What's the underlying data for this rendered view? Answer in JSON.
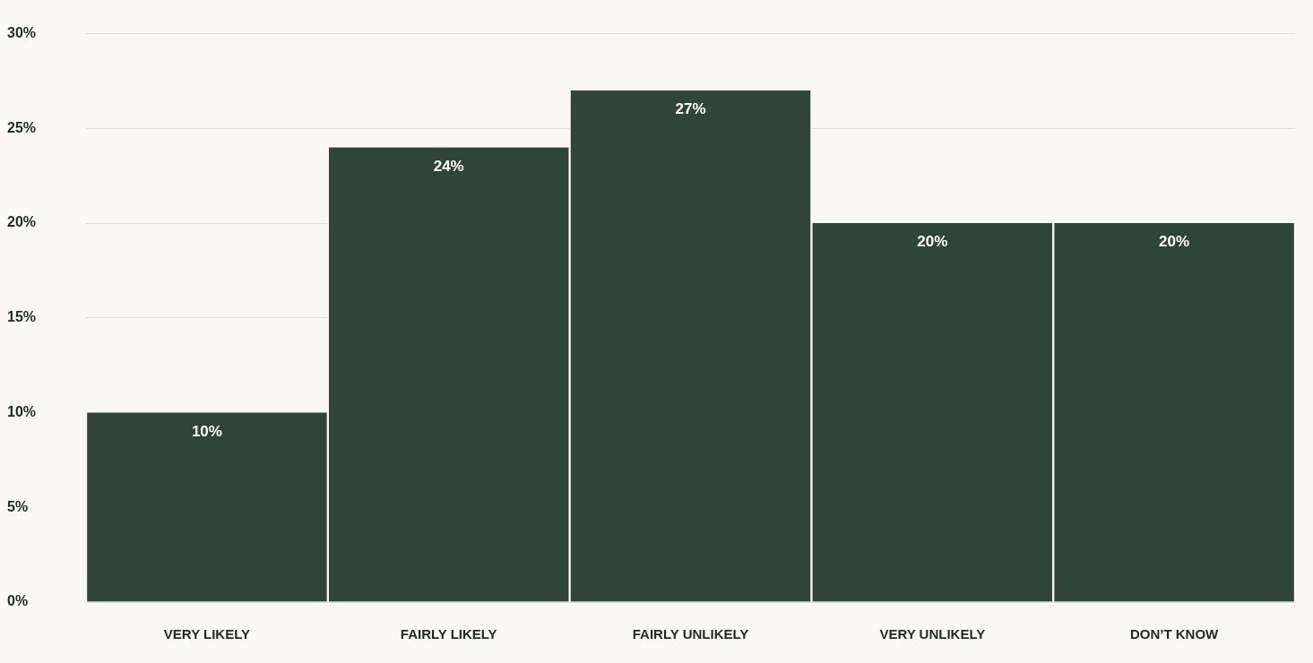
{
  "chart_data": {
    "type": "bar",
    "categories": [
      "VERY LIKELY",
      "FAIRLY LIKELY",
      "FAIRLY UNLIKELY",
      "VERY UNLIKELY",
      "DON’T KNOW"
    ],
    "values": [
      10,
      24,
      27,
      20,
      20
    ],
    "value_labels": [
      "10%",
      "24%",
      "27%",
      "20%",
      "20%"
    ],
    "color": "#2f4539",
    "ylim": [
      0,
      30
    ],
    "yticks": [
      {
        "value": 0,
        "label": "0%"
      },
      {
        "value": 5,
        "label": "5%"
      },
      {
        "value": 10,
        "label": "10%"
      },
      {
        "value": 15,
        "label": "15%"
      },
      {
        "value": 20,
        "label": "20%"
      },
      {
        "value": 25,
        "label": "25%"
      },
      {
        "value": 30,
        "label": "30%"
      }
    ],
    "grid": "y"
  }
}
